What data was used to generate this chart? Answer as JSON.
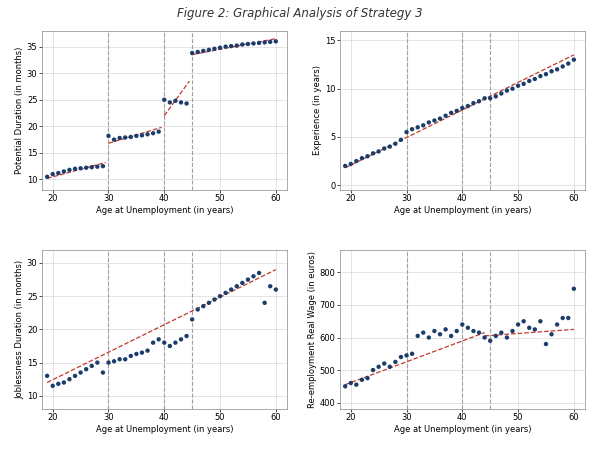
{
  "title": "Figure 2: Graphical Analysis of Strategy 3",
  "dashed_lines": [
    30,
    40,
    45
  ],
  "dot_color": "#1a3d6b",
  "line_color": "#c0392b",
  "fig_bg": "#ffffff",
  "panel_bg": "#ffffff",
  "grid_color": "#d0d0d0",
  "vline_color": "#a0a0a0",
  "panel1": {
    "ylabel": "Potential Duration (in months)",
    "xlabel": "Age at Unemployment (in years)",
    "xlim": [
      18,
      62
    ],
    "ylim": [
      8,
      38
    ],
    "yticks": [
      10,
      15,
      20,
      25,
      30,
      35
    ],
    "xticks": [
      20,
      30,
      40,
      50,
      60
    ],
    "scatter_x": [
      19,
      20,
      21,
      22,
      23,
      24,
      25,
      26,
      27,
      28,
      29,
      30,
      31,
      32,
      33,
      34,
      35,
      36,
      37,
      38,
      39,
      40,
      41,
      42,
      43,
      44,
      45,
      46,
      47,
      48,
      49,
      50,
      51,
      52,
      53,
      54,
      55,
      56,
      57,
      58,
      59,
      60
    ],
    "scatter_y": [
      10.5,
      11.0,
      11.2,
      11.5,
      11.8,
      12.0,
      12.1,
      12.2,
      12.3,
      12.4,
      12.5,
      18.2,
      17.5,
      17.8,
      17.9,
      18.0,
      18.2,
      18.3,
      18.5,
      18.7,
      19.0,
      25.0,
      24.5,
      24.8,
      24.5,
      24.3,
      33.8,
      34.0,
      34.2,
      34.4,
      34.6,
      34.8,
      35.0,
      35.1,
      35.2,
      35.4,
      35.5,
      35.6,
      35.7,
      35.8,
      35.9,
      36.0
    ],
    "line_segments": [
      {
        "x": [
          19,
          29.5
        ],
        "y": [
          10.2,
          13.2
        ]
      },
      {
        "x": [
          30,
          39.5
        ],
        "y": [
          16.8,
          19.8
        ]
      },
      {
        "x": [
          40,
          44.5
        ],
        "y": [
          22.0,
          28.5
        ]
      },
      {
        "x": [
          45,
          60
        ],
        "y": [
          33.5,
          36.5
        ]
      }
    ]
  },
  "panel2": {
    "ylabel": "Experience (in years)",
    "xlabel": "Age at Unemployment (in years)",
    "xlim": [
      18,
      62
    ],
    "ylim": [
      -0.5,
      16
    ],
    "yticks": [
      0,
      5,
      10,
      15
    ],
    "xticks": [
      20,
      30,
      40,
      50,
      60
    ],
    "scatter_x": [
      19,
      20,
      21,
      22,
      23,
      24,
      25,
      26,
      27,
      28,
      29,
      30,
      31,
      32,
      33,
      34,
      35,
      36,
      37,
      38,
      39,
      40,
      41,
      42,
      43,
      44,
      45,
      46,
      47,
      48,
      49,
      50,
      51,
      52,
      53,
      54,
      55,
      56,
      57,
      58,
      59,
      60
    ],
    "scatter_y": [
      2.0,
      2.2,
      2.5,
      2.8,
      3.0,
      3.3,
      3.5,
      3.8,
      4.0,
      4.3,
      4.7,
      5.5,
      5.8,
      6.0,
      6.2,
      6.5,
      6.7,
      6.9,
      7.2,
      7.5,
      7.7,
      8.0,
      8.2,
      8.5,
      8.7,
      9.0,
      9.0,
      9.2,
      9.5,
      9.8,
      10.0,
      10.3,
      10.5,
      10.8,
      11.0,
      11.3,
      11.5,
      11.8,
      12.0,
      12.3,
      12.6,
      13.0
    ],
    "line_segments": [
      {
        "x": [
          19,
          60
        ],
        "y": [
          1.8,
          13.5
        ]
      }
    ]
  },
  "panel3": {
    "ylabel": "Joblessness Duration (in months)",
    "xlabel": "Age at Unemployment (in years)",
    "xlim": [
      18,
      62
    ],
    "ylim": [
      8,
      32
    ],
    "yticks": [
      10,
      15,
      20,
      25,
      30
    ],
    "xticks": [
      20,
      30,
      40,
      50,
      60
    ],
    "scatter_x": [
      19,
      20,
      21,
      22,
      23,
      24,
      25,
      26,
      27,
      28,
      29,
      30,
      31,
      32,
      33,
      34,
      35,
      36,
      37,
      38,
      39,
      40,
      41,
      42,
      43,
      44,
      45,
      46,
      47,
      48,
      49,
      50,
      51,
      52,
      53,
      54,
      55,
      56,
      57,
      58,
      59,
      60
    ],
    "scatter_y": [
      13.0,
      11.5,
      11.8,
      12.0,
      12.5,
      13.0,
      13.5,
      14.0,
      14.5,
      15.0,
      13.5,
      15.0,
      15.2,
      15.5,
      15.5,
      16.0,
      16.3,
      16.5,
      16.8,
      18.0,
      18.5,
      18.0,
      17.5,
      18.0,
      18.5,
      19.0,
      21.5,
      23.0,
      23.5,
      24.0,
      24.5,
      25.0,
      25.5,
      26.0,
      26.5,
      27.0,
      27.5,
      28.0,
      28.5,
      24.0,
      26.5,
      26.0
    ],
    "line_segments": [
      {
        "x": [
          19,
          60
        ],
        "y": [
          12.0,
          29.0
        ]
      }
    ]
  },
  "panel4": {
    "ylabel": "Re-employment Real Wage (in euros)",
    "xlabel": "Age at Unemployment (in years)",
    "xlim": [
      18,
      62
    ],
    "ylim": [
      380,
      870
    ],
    "yticks": [
      400,
      500,
      600,
      700,
      800
    ],
    "xticks": [
      20,
      30,
      40,
      50,
      60
    ],
    "scatter_x": [
      19,
      20,
      21,
      22,
      23,
      24,
      25,
      26,
      27,
      28,
      29,
      30,
      31,
      32,
      33,
      34,
      35,
      36,
      37,
      38,
      39,
      40,
      41,
      42,
      43,
      44,
      45,
      46,
      47,
      48,
      49,
      50,
      51,
      52,
      53,
      54,
      55,
      56,
      57,
      58,
      59,
      60
    ],
    "scatter_y": [
      450,
      460,
      455,
      470,
      475,
      500,
      510,
      520,
      510,
      525,
      540,
      545,
      550,
      605,
      615,
      600,
      620,
      610,
      625,
      605,
      620,
      640,
      630,
      620,
      615,
      600,
      590,
      605,
      615,
      600,
      620,
      640,
      650,
      630,
      625,
      650,
      580,
      610,
      640,
      660,
      660,
      750
    ],
    "line_segments": [
      {
        "x": [
          19,
          44
        ],
        "y": [
          455,
          615
        ]
      },
      {
        "x": [
          44,
          60
        ],
        "y": [
          605,
          625
        ]
      }
    ]
  }
}
